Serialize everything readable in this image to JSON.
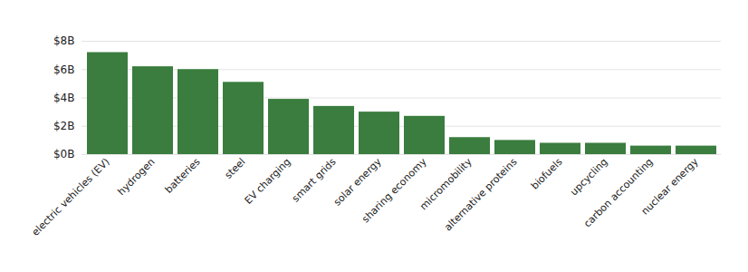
{
  "chart_data": {
    "type": "bar",
    "categories": [
      "electric vehicles (EV)",
      "hydrogen",
      "batteries",
      "steel",
      "EV charging",
      "smart grids",
      "solar energy",
      "sharing economy",
      "micromobility",
      "alternative proteins",
      "biofuels",
      "upcycling",
      "carbon accounting",
      "nuclear energy"
    ],
    "values": [
      7.2,
      6.2,
      6.0,
      5.1,
      3.9,
      3.4,
      3.0,
      2.7,
      1.2,
      1.0,
      0.8,
      0.8,
      0.6,
      0.6
    ],
    "color": "#3a7d3e",
    "ylim": [
      0,
      8
    ],
    "yticks": [
      {
        "value": 0,
        "label": "$0B"
      },
      {
        "value": 2,
        "label": "$2B"
      },
      {
        "value": 4,
        "label": "$4B"
      },
      {
        "value": 6,
        "label": "$6B"
      },
      {
        "value": 8,
        "label": "$8B"
      }
    ],
    "grid": true
  }
}
